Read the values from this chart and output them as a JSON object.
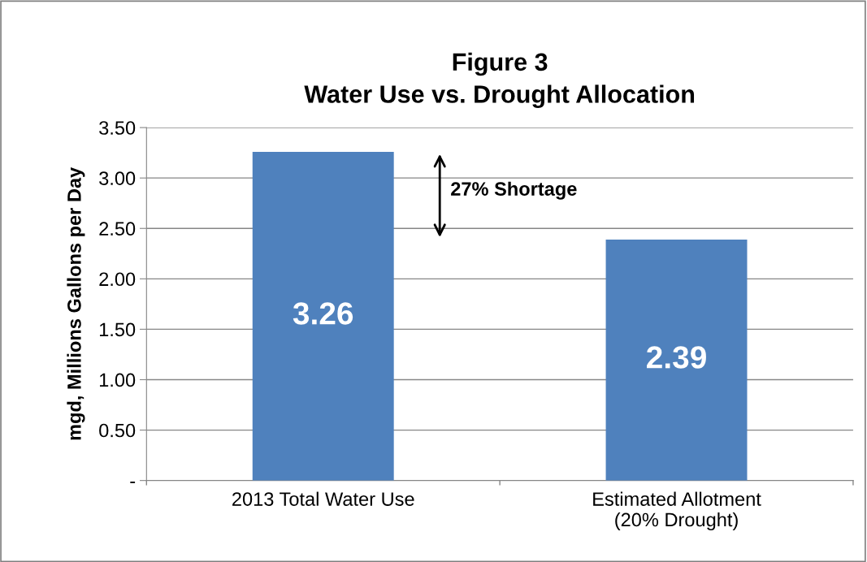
{
  "chart_data": {
    "type": "bar",
    "title": "Figure 3\nWater Use vs. Drought Allocation",
    "ylabel": "mgd, Millions Gallons per Day",
    "categories": [
      "2013 Total Water Use",
      "Estimated Allotment\n(20% Drought)"
    ],
    "values": [
      3.26,
      2.39
    ],
    "color": "#4f81bd",
    "ylim": [
      0,
      3.5
    ],
    "yticks": [
      {
        "value": 0,
        "label": "-"
      },
      {
        "value": 0.5,
        "label": "0.50"
      },
      {
        "value": 1.0,
        "label": "1.00"
      },
      {
        "value": 1.5,
        "label": "1.50"
      },
      {
        "value": 2.0,
        "label": "2.00"
      },
      {
        "value": 2.5,
        "label": "2.50"
      },
      {
        "value": 3.0,
        "label": "3.00"
      },
      {
        "value": 3.5,
        "label": "3.50"
      }
    ],
    "grid": "y",
    "data_labels": true,
    "legend": false,
    "annotations": [
      "27% Shortage"
    ]
  }
}
